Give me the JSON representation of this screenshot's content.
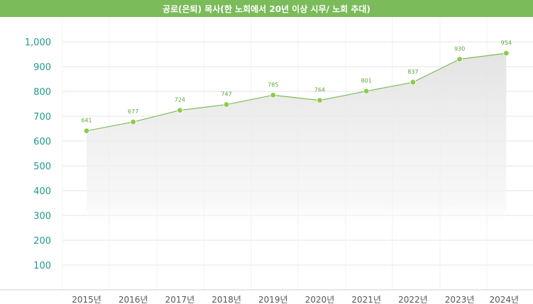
{
  "chart_data": {
    "type": "area",
    "title": "공로(은퇴) 목사(한 노회에서 20년 이상 시무/ 노회 추대)",
    "xlabel": "",
    "ylabel": "",
    "categories": [
      "2015년",
      "2016년",
      "2017년",
      "2018년",
      "2019년",
      "2020년",
      "2021년",
      "2022년",
      "2023년",
      "2024년"
    ],
    "values": [
      641,
      677,
      724,
      747,
      785,
      764,
      801,
      837,
      930,
      954
    ],
    "data_labels": [
      "641",
      "677",
      "724",
      "747",
      "785",
      "764",
      "801",
      "837",
      "930",
      "954"
    ],
    "yticks": [
      100,
      200,
      300,
      400,
      500,
      600,
      700,
      800,
      900,
      1000
    ],
    "ytick_labels": [
      "100",
      "200",
      "300",
      "400",
      "500",
      "600",
      "700",
      "800",
      "900",
      "1,000"
    ],
    "ylim": [
      0,
      1000
    ],
    "grid": true,
    "legend": "none"
  },
  "colors": {
    "title_bar": "#7bbb5a",
    "line": "#7bbb5a",
    "marker": "#8ccc4a",
    "ytick_text": "#1f9a8c",
    "grid": "#e6e6e6"
  }
}
